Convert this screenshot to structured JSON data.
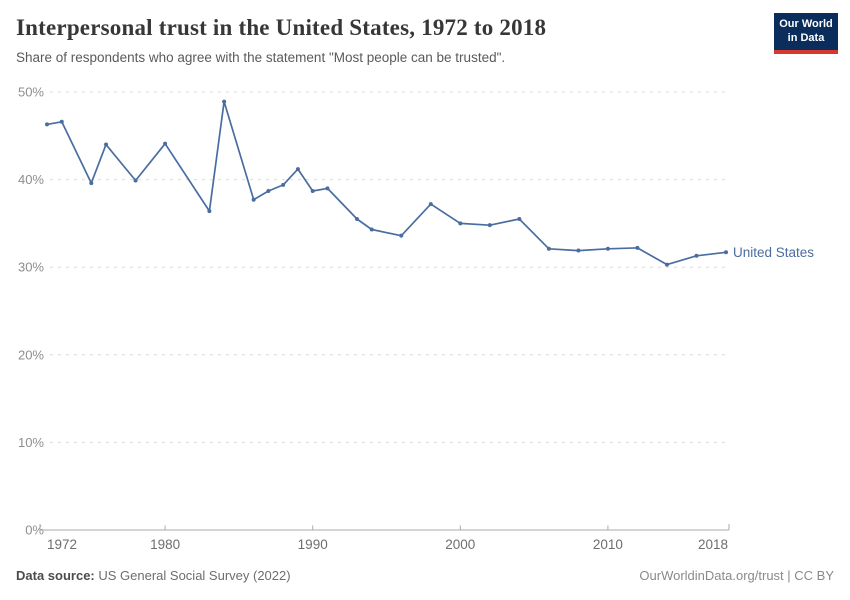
{
  "header": {
    "title": "Interpersonal trust in the United States, 1972 to 2018",
    "subtitle": "Share of respondents who agree with the statement \"Most people can be trusted\".",
    "logo": {
      "line1": "Our World",
      "line2": "in Data",
      "bg_color": "#0b2d5c",
      "accent_color": "#d4382e"
    }
  },
  "chart_data": {
    "type": "line",
    "title": "Interpersonal trust in the United States, 1972 to 2018",
    "xlabel": "",
    "ylabel": "",
    "xlim": [
      1972,
      2018
    ],
    "ylim": [
      0,
      50
    ],
    "x_ticks": [
      1972,
      1980,
      1990,
      2000,
      2010,
      2018
    ],
    "y_ticks": [
      0,
      10,
      20,
      30,
      40,
      50
    ],
    "y_tick_suffix": "%",
    "grid": "horizontal-dashed",
    "legend_position": "end-of-line",
    "series": [
      {
        "name": "United States",
        "color": "#4a6da0",
        "x": [
          1972,
          1973,
          1975,
          1976,
          1978,
          1980,
          1983,
          1984,
          1986,
          1987,
          1988,
          1989,
          1990,
          1991,
          1993,
          1994,
          1996,
          1998,
          2000,
          2002,
          2004,
          2006,
          2008,
          2010,
          2012,
          2014,
          2016,
          2018
        ],
        "values": [
          46.3,
          46.6,
          39.6,
          44.0,
          39.9,
          44.1,
          36.4,
          48.9,
          37.7,
          38.7,
          39.4,
          41.2,
          38.7,
          39.0,
          35.5,
          34.3,
          33.6,
          37.2,
          35.0,
          34.8,
          35.5,
          32.1,
          31.9,
          32.1,
          32.2,
          30.3,
          31.3,
          31.7
        ]
      }
    ],
    "colors": {
      "gridline": "#dcdcdc",
      "axis": "#ababab",
      "y_tick_label": "#8e8e8e",
      "x_tick_label": "#6e6e6e"
    }
  },
  "footer": {
    "source_label": "Data source:",
    "source_value": "US General Social Survey (2022)",
    "right_text": "OurWorldinData.org/trust | CC BY"
  }
}
